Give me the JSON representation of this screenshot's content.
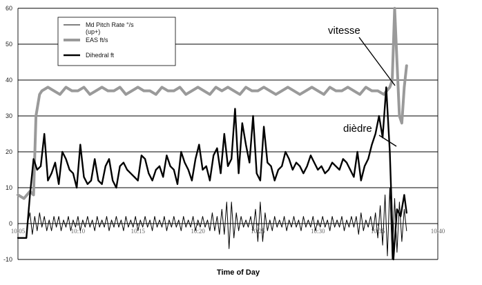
{
  "chart_data": {
    "type": "line",
    "title": "",
    "xlabel": "Time of Day",
    "ylabel": "",
    "xlim": [
      "10:05",
      "10:40"
    ],
    "ylim": [
      -10,
      60
    ],
    "x_ticks": [
      "10:05",
      "10:10",
      "10:15",
      "10:20",
      "10:25",
      "10:30",
      "10:35",
      "10:40"
    ],
    "y_ticks": [
      "-10",
      "0",
      "10",
      "20",
      "30",
      "40",
      "50",
      "60"
    ],
    "grid": "horizontal",
    "legend": {
      "placement": "top-left",
      "entries": [
        {
          "name": "Md Pitch Rate °/s",
          "name_line2": "(up+)",
          "style": "thin-black"
        },
        {
          "name": "EAS ft/s",
          "style": "thick-gray"
        },
        {
          "name": "Dihedral ft",
          "style": "thick-black"
        }
      ]
    },
    "annotations": [
      {
        "text": "vitesse",
        "points_to_series": "EAS ft/s",
        "at_time": "10:36.4",
        "value": 37
      },
      {
        "text": "dièdre",
        "points_to_series": "Dihedral ft",
        "at_time": "10:35.6",
        "value": 22
      }
    ],
    "series": [
      {
        "name": "EAS ft/s",
        "color": "#9a9a9a",
        "x_minutes": [
          5.0,
          5.5,
          6.0,
          6.3,
          6.5,
          6.8,
          7.0,
          7.5,
          8,
          8.5,
          9,
          9.5,
          10,
          10.5,
          11,
          11.5,
          12,
          12.5,
          13,
          13.5,
          14,
          14.5,
          15,
          15.5,
          16,
          16.5,
          17,
          17.5,
          18,
          18.5,
          19,
          19.5,
          20,
          20.5,
          21,
          21.5,
          22,
          22.5,
          23,
          23.5,
          24,
          24.5,
          25,
          25.5,
          26,
          26.5,
          27,
          27.5,
          28,
          28.5,
          29,
          29.5,
          30,
          30.5,
          31,
          31.5,
          32,
          32.5,
          33,
          33.5,
          34,
          34.5,
          35,
          35.5,
          36,
          36.2,
          36.4,
          36.6,
          36.8,
          37.0,
          37.2,
          37.4
        ],
        "values": [
          8,
          7,
          9,
          8,
          30,
          36,
          37,
          38,
          37,
          36,
          38,
          37,
          37,
          38,
          36,
          37,
          38,
          37,
          37,
          38,
          36,
          37,
          38,
          37,
          37,
          36,
          38,
          37,
          37,
          38,
          36,
          37,
          38,
          37,
          36,
          38,
          37,
          38,
          37,
          36,
          38,
          37,
          37,
          38,
          37,
          36,
          37,
          38,
          37,
          36,
          37,
          38,
          37,
          36,
          38,
          37,
          37,
          38,
          37,
          36,
          38,
          37,
          37,
          36,
          38,
          40,
          60,
          45,
          30,
          28,
          38,
          44
        ]
      },
      {
        "name": "Dihedral ft",
        "color": "#000000",
        "x_minutes": [
          5.0,
          5.7,
          6.0,
          6.3,
          6.6,
          6.9,
          7.2,
          7.5,
          7.8,
          8.1,
          8.4,
          8.7,
          9.0,
          9.3,
          9.6,
          9.9,
          10.2,
          10.5,
          10.8,
          11.1,
          11.4,
          11.7,
          12.0,
          12.3,
          12.6,
          12.9,
          13.2,
          13.5,
          13.8,
          14.1,
          14.4,
          14.7,
          15.0,
          15.3,
          15.6,
          15.9,
          16.2,
          16.5,
          16.8,
          17.1,
          17.4,
          17.7,
          18.0,
          18.3,
          18.6,
          18.9,
          19.2,
          19.5,
          19.8,
          20.1,
          20.4,
          20.7,
          21.0,
          21.3,
          21.6,
          21.9,
          22.2,
          22.5,
          22.8,
          23.1,
          23.4,
          23.7,
          24.0,
          24.3,
          24.6,
          24.9,
          25.2,
          25.5,
          25.8,
          26.1,
          26.4,
          26.7,
          27.0,
          27.3,
          27.6,
          27.9,
          28.2,
          28.5,
          28.8,
          29.1,
          29.4,
          29.7,
          30.0,
          30.3,
          30.6,
          30.9,
          31.2,
          31.5,
          31.8,
          32.1,
          32.4,
          32.7,
          33.0,
          33.3,
          33.6,
          33.9,
          34.2,
          34.5,
          34.8,
          35.1,
          35.4,
          35.7,
          36.0,
          36.3,
          36.6,
          36.9,
          37.2,
          37.4
        ],
        "values": [
          -4,
          -4,
          8,
          18,
          15,
          16,
          25,
          12,
          14,
          17,
          11,
          20,
          18,
          15,
          14,
          10,
          22,
          13,
          11,
          12,
          18,
          12,
          11,
          16,
          18,
          12,
          10,
          16,
          17,
          15,
          14,
          13,
          12,
          19,
          18,
          14,
          12,
          15,
          16,
          13,
          19,
          16,
          15,
          11,
          20,
          17,
          15,
          12,
          18,
          22,
          15,
          16,
          12,
          19,
          21,
          14,
          25,
          16,
          18,
          32,
          14,
          28,
          22,
          17,
          30,
          14,
          12,
          27,
          17,
          16,
          12,
          15,
          16,
          20,
          18,
          15,
          17,
          16,
          14,
          16,
          19,
          17,
          15,
          16,
          14,
          15,
          17,
          16,
          15,
          18,
          17,
          15,
          13,
          20,
          12,
          16,
          18,
          22,
          25,
          30,
          24,
          38,
          20,
          -10,
          4,
          2,
          8,
          3
        ]
      },
      {
        "name": "Md Pitch Rate °/s",
        "color": "#000000",
        "x_minutes": [
          5.0,
          5.8,
          6.0,
          6.2,
          6.4,
          6.6,
          6.8,
          7.0,
          7.2,
          7.4,
          7.6,
          7.8,
          8.0,
          8.2,
          8.4,
          8.6,
          8.8,
          9.0,
          9.2,
          9.4,
          9.6,
          9.8,
          10.0,
          10.2,
          10.4,
          10.6,
          10.8,
          11.0,
          11.2,
          11.4,
          11.6,
          11.8,
          12.0,
          12.2,
          12.4,
          12.6,
          12.8,
          13.0,
          13.2,
          13.4,
          13.6,
          13.8,
          14.0,
          14.2,
          14.4,
          14.6,
          14.8,
          15.0,
          15.2,
          15.4,
          15.6,
          15.8,
          16.0,
          16.2,
          16.4,
          16.6,
          16.8,
          17.0,
          17.2,
          17.4,
          17.6,
          17.8,
          18.0,
          18.2,
          18.4,
          18.6,
          18.8,
          19.0,
          19.2,
          19.4,
          19.6,
          19.8,
          20.0,
          20.2,
          20.4,
          20.6,
          20.8,
          21.0,
          21.2,
          21.4,
          21.6,
          21.8,
          22.0,
          22.2,
          22.4,
          22.6,
          22.8,
          23.0,
          23.2,
          23.4,
          23.6,
          23.8,
          24.0,
          24.2,
          24.4,
          24.6,
          24.8,
          25.0,
          25.2,
          25.4,
          25.6,
          25.8,
          26.0,
          26.2,
          26.4,
          26.6,
          26.8,
          27.0,
          27.2,
          27.4,
          27.6,
          27.8,
          28.0,
          28.2,
          28.4,
          28.6,
          28.8,
          29.0,
          29.2,
          29.4,
          29.6,
          29.8,
          30.0,
          30.2,
          30.4,
          30.6,
          30.8,
          31.0,
          31.2,
          31.4,
          31.6,
          31.8,
          32.0,
          32.2,
          32.4,
          32.6,
          32.8,
          33.0,
          33.2,
          33.4,
          33.6,
          33.8,
          34.0,
          34.2,
          34.4,
          34.6,
          34.8,
          35.0,
          35.2,
          35.4,
          35.6,
          35.8,
          36.0,
          36.2,
          36.4,
          36.6,
          36.8,
          37.0,
          37.2,
          37.4
        ],
        "values": [
          0,
          0,
          3,
          -3,
          2,
          -2,
          3,
          -1,
          2,
          -2,
          1,
          -2,
          2,
          -1,
          2,
          -2,
          1,
          -1,
          2,
          -2,
          1,
          -1,
          2,
          -2,
          1,
          -1,
          2,
          -1,
          1,
          -2,
          2,
          -1,
          1,
          -1,
          2,
          -2,
          1,
          -1,
          2,
          -1,
          1,
          -2,
          2,
          -1,
          1,
          -1,
          2,
          -2,
          1,
          -1,
          2,
          -1,
          1,
          -2,
          2,
          -1,
          1,
          -1,
          2,
          -2,
          1,
          -1,
          2,
          -1,
          1,
          -2,
          2,
          -1,
          1,
          -1,
          2,
          -2,
          1,
          -1,
          2,
          -1,
          1,
          -2,
          3,
          -2,
          2,
          -3,
          4,
          -3,
          6,
          -7,
          6,
          -4,
          3,
          -2,
          2,
          -1,
          1,
          -1,
          2,
          -2,
          4,
          -5,
          6,
          -5,
          3,
          -2,
          1,
          -2,
          2,
          -1,
          1,
          -1,
          2,
          -2,
          1,
          -1,
          2,
          -1,
          1,
          -2,
          2,
          -1,
          1,
          -1,
          2,
          -2,
          1,
          -1,
          2,
          -1,
          1,
          -2,
          2,
          -1,
          1,
          -1,
          2,
          -2,
          1,
          -1,
          2,
          -1,
          2,
          -3,
          3,
          -2,
          1,
          -1,
          2,
          -2,
          3,
          -4,
          5,
          -6,
          8,
          -9,
          10,
          -10,
          7,
          -8,
          6,
          -5,
          4,
          -2
        ]
      }
    ]
  }
}
